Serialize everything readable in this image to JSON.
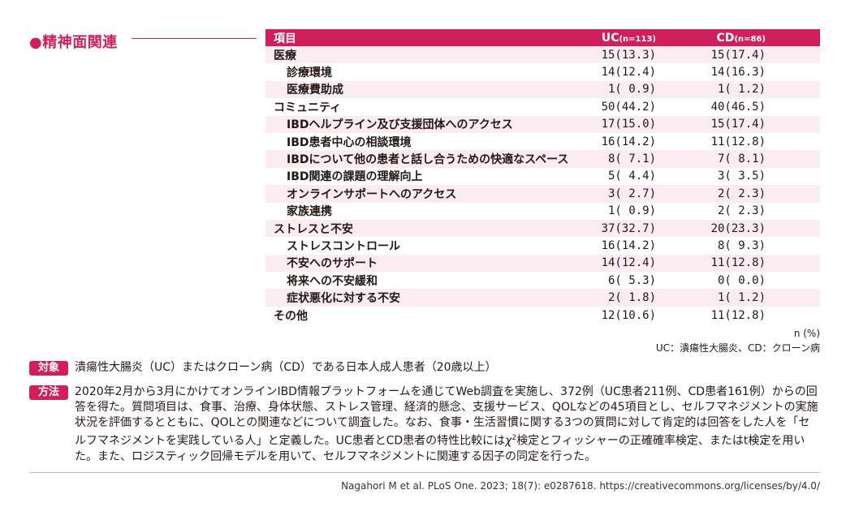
{
  "section": {
    "title": "●精神面関連"
  },
  "table": {
    "headers": {
      "item": "項目",
      "uc": "UC",
      "uc_n": "(n=113)",
      "cd": "CD",
      "cd_n": "(n=86)"
    },
    "rows": [
      {
        "label": "医療",
        "uc": "15(13.3)",
        "cd": "15(17.4)"
      },
      {
        "label": "診療環境",
        "uc": "14(12.4)",
        "cd": "14(16.3)"
      },
      {
        "label": "医療費助成",
        "uc": " 1( 0.9)",
        "cd": " 1( 1.2)"
      },
      {
        "label": "コミュニティ",
        "uc": "50(44.2)",
        "cd": "40(46.5)"
      },
      {
        "label": "IBDヘルプライン及び支援団体へのアクセス",
        "uc": "17(15.0)",
        "cd": "15(17.4)"
      },
      {
        "label": "IBD患者中心の相談環境",
        "uc": "16(14.2)",
        "cd": "11(12.8)"
      },
      {
        "label": "IBDについて他の患者と話し合うための快適なスペース",
        "uc": " 8( 7.1)",
        "cd": " 7( 8.1)"
      },
      {
        "label": "IBD関連の課題の理解向上",
        "uc": " 5( 4.4)",
        "cd": " 3( 3.5)"
      },
      {
        "label": "オンラインサポートへのアクセス",
        "uc": " 3( 2.7)",
        "cd": " 2( 2.3)"
      },
      {
        "label": "家族連携",
        "uc": " 1( 0.9)",
        "cd": " 2( 2.3)"
      },
      {
        "label": "ストレスと不安",
        "uc": "37(32.7)",
        "cd": "20(23.3)"
      },
      {
        "label": "ストレスコントロール",
        "uc": "16(14.2)",
        "cd": " 8( 9.3)"
      },
      {
        "label": "不安へのサポート",
        "uc": "14(12.4)",
        "cd": "11(12.8)"
      },
      {
        "label": "将来への不安緩和",
        "uc": " 6( 5.3)",
        "cd": " 0( 0.0)"
      },
      {
        "label": "症状悪化に対する不安",
        "uc": " 2( 1.8)",
        "cd": " 1( 1.2)"
      },
      {
        "label": "その他",
        "uc": "12(10.6)",
        "cd": "11(12.8)"
      }
    ],
    "note_unit": "n (%)",
    "note_abbrev": "UC：潰瘍性大腸炎、CD：クローン病"
  },
  "subject": {
    "tag": "対象",
    "text": "潰瘍性大腸炎（UC）またはクローン病（CD）である日本人成人患者（20歳以上）"
  },
  "method": {
    "tag": "方法",
    "text_before": "2020年2月から3月にかけてオンラインIBD情報プラットフォームを通じてWeb調査を実施し、372例（UC患者211例、CD患者161例）からの回答を得た。質問項目は、食事、治療、身体状態、ストレス管理、経済的懸念、支援サービス、QOLなどの45項目とし、セルフマネジメントの実施状況を評価するとともに、QOLとの関連などについて調査した。なお、食事・生活習慣に関する3つの質問に対して肯定的は回答をした人を「セルフマネジメントを実践している人」と定義した。UC患者とCD患者の特性比較には",
    "chi": "χ",
    "chi_sup": "2",
    "text_after": "検定とフィッシャーの正確確率検定、またはt検定を用いた。また、ロジスティック回帰モデルを用いて、セルフマネジメントに関連する因子の同定を行った。"
  },
  "citation": "Nagahori M et al. PLoS One. 2023; 18(7): e0287618. https://creativecommons.org/licenses/by/4.0/",
  "colors": {
    "accent": "#d11f5e",
    "stripe": "#fbecf1"
  }
}
